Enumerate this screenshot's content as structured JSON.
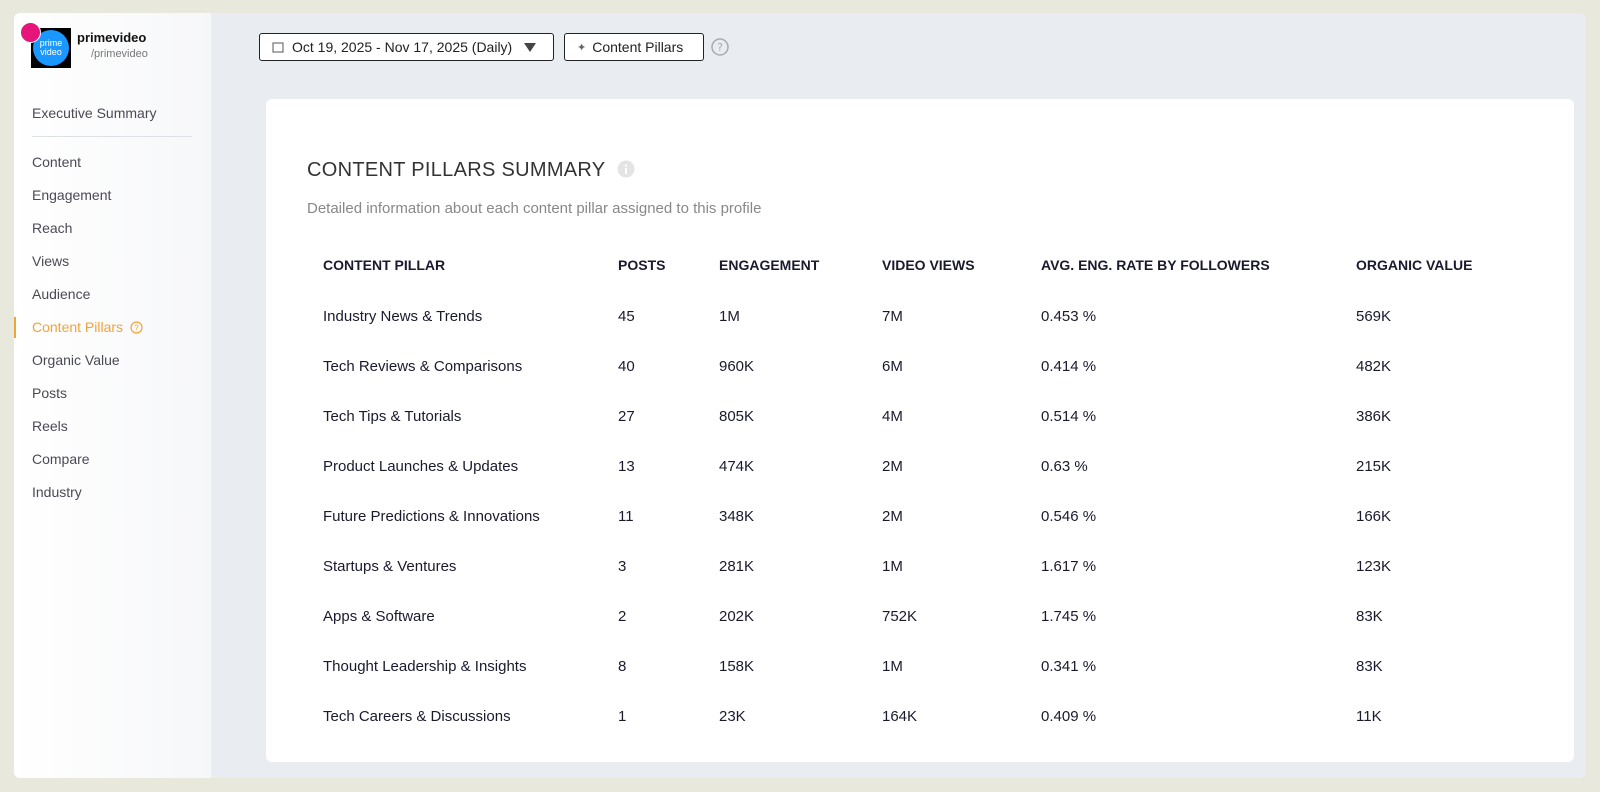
{
  "profile": {
    "logo": [
      "prime",
      "video"
    ],
    "name": "primevideo",
    "handle": "/primevideo"
  },
  "nav": [
    "Executive Summary",
    "Content",
    "Engagement",
    "Reach",
    "Views",
    "Audience",
    "Content Pillars",
    "Organic Value",
    "Posts",
    "Reels",
    "Compare",
    "Industry"
  ],
  "active_nav": 6,
  "toolbar": {
    "date_range": "Oct 19, 2025 - Nov 17, 2025 (Daily)",
    "filter": "Content Pillars"
  },
  "card": {
    "title": "CONTENT PILLARS SUMMARY",
    "subtitle": "Detailed information about each content pillar assigned to this profile",
    "table": {
      "headers": [
        "CONTENT PILLAR",
        "POSTS",
        "ENGAGEMENT",
        "VIDEO VIEWS",
        "AVG. ENG. RATE BY FOLLOWERS",
        "ORGANIC VALUE"
      ],
      "rows": [
        [
          "Industry News & Trends",
          "45",
          "1M",
          "7M",
          "0.453 %",
          "569K"
        ],
        [
          "Tech Reviews & Comparisons",
          "40",
          "960K",
          "6M",
          "0.414 %",
          "482K"
        ],
        [
          "Tech Tips & Tutorials",
          "27",
          "805K",
          "4M",
          "0.514 %",
          "386K"
        ],
        [
          "Product Launches & Updates",
          "13",
          "474K",
          "2M",
          "0.63 %",
          "215K"
        ],
        [
          "Future Predictions & Innovations",
          "11",
          "348K",
          "2M",
          "0.546 %",
          "166K"
        ],
        [
          "Startups & Ventures",
          "3",
          "281K",
          "1M",
          "1.617 %",
          "123K"
        ],
        [
          "Apps & Software",
          "2",
          "202K",
          "752K",
          "1.745 %",
          "83K"
        ],
        [
          "Thought Leadership & Insights",
          "8",
          "158K",
          "1M",
          "0.341 %",
          "83K"
        ],
        [
          "Tech Careers & Discussions",
          "1",
          "23K",
          "164K",
          "0.409 %",
          "11K"
        ]
      ]
    }
  }
}
